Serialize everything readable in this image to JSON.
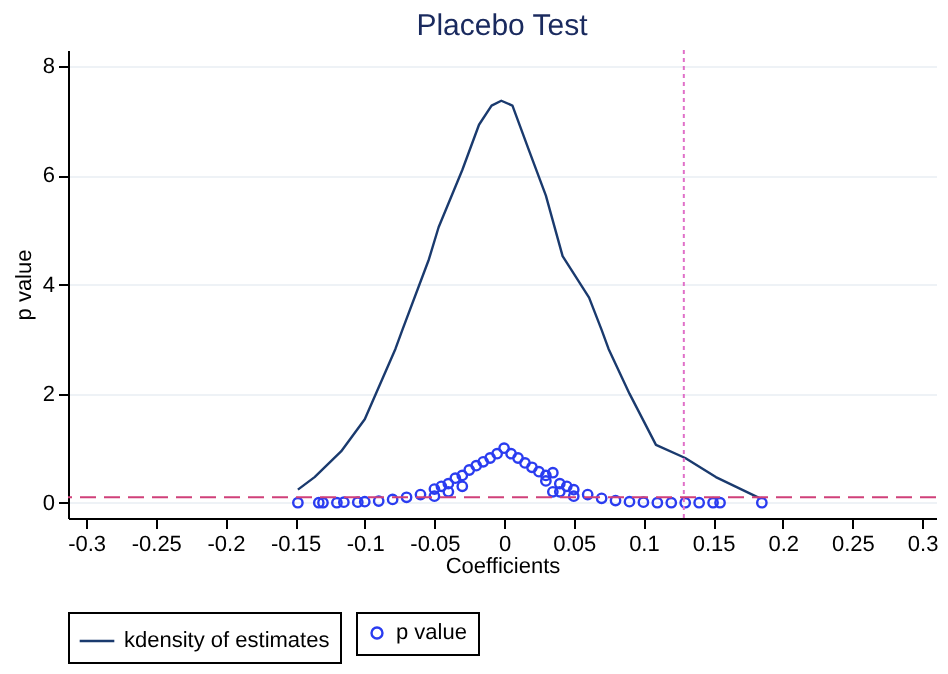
{
  "chart_data": {
    "type": "line",
    "title": "Placebo Test",
    "xlabel": "Coefficients",
    "ylabel": "p value",
    "xlim": [
      -0.313,
      0.31
    ],
    "ylim": [
      -0.28,
      8.3
    ],
    "xticks": [
      -0.3,
      -0.25,
      -0.2,
      -0.15,
      -0.1,
      -0.05,
      0,
      0.05,
      0.1,
      0.15,
      0.2,
      0.25,
      0.3
    ],
    "yticks": [
      0,
      2,
      4,
      6,
      8
    ],
    "grid": "y",
    "legend": "bottom",
    "series": [
      {
        "name": "kdensity of estimates",
        "color": "#1a3a6e",
        "line_style": "solid",
        "marker": "none",
        "x": [
          -0.148,
          -0.136,
          -0.117,
          -0.1,
          -0.078,
          -0.073,
          -0.054,
          -0.047,
          -0.03,
          -0.018,
          -0.009,
          -0.002,
          0.006,
          0.018,
          0.03,
          0.042,
          0.061,
          0.07,
          0.075,
          0.09,
          0.109,
          0.13,
          0.152,
          0.183
        ],
        "values": [
          0.24,
          0.47,
          0.94,
          1.53,
          2.82,
          3.17,
          4.46,
          5.05,
          6.1,
          6.93,
          7.28,
          7.37,
          7.28,
          6.45,
          5.63,
          4.52,
          3.76,
          3.17,
          2.82,
          2.0,
          1.06,
          0.82,
          0.47,
          0.09
        ]
      },
      {
        "name": "p value",
        "type": "scatter",
        "color": "#2a3cf0",
        "marker": "circle",
        "x": [
          -0.148,
          -0.133,
          -0.13,
          -0.12,
          -0.115,
          -0.105,
          -0.1,
          -0.09,
          -0.08,
          -0.07,
          -0.06,
          -0.05,
          -0.05,
          -0.045,
          -0.04,
          -0.04,
          -0.035,
          -0.03,
          -0.03,
          -0.025,
          -0.02,
          -0.015,
          -0.01,
          -0.005,
          0,
          0.005,
          0.01,
          0.015,
          0.02,
          0.025,
          0.03,
          0.03,
          0.035,
          0.035,
          0.04,
          0.04,
          0.045,
          0.05,
          0.05,
          0.06,
          0.07,
          0.08,
          0.09,
          0.1,
          0.11,
          0.12,
          0.13,
          0.14,
          0.15,
          0.155,
          0.185
        ],
        "values": [
          0,
          0,
          0,
          0,
          0.01,
          0.01,
          0.02,
          0.03,
          0.06,
          0.1,
          0.15,
          0.25,
          0.12,
          0.3,
          0.35,
          0.2,
          0.45,
          0.5,
          0.3,
          0.6,
          0.68,
          0.75,
          0.82,
          0.9,
          1.0,
          0.9,
          0.82,
          0.73,
          0.65,
          0.57,
          0.5,
          0.4,
          0.55,
          0.2,
          0.35,
          0.2,
          0.3,
          0.24,
          0.12,
          0.15,
          0.08,
          0.04,
          0.02,
          0.01,
          0,
          0,
          0,
          0,
          0,
          0,
          0
        ]
      }
    ],
    "ref_lines": [
      {
        "axis": "x",
        "value": 0.129,
        "color": "#e070c8",
        "line_style": "dotted"
      },
      {
        "axis": "y",
        "value": 0.1,
        "color": "#d0407a",
        "line_style": "dashed"
      }
    ]
  }
}
